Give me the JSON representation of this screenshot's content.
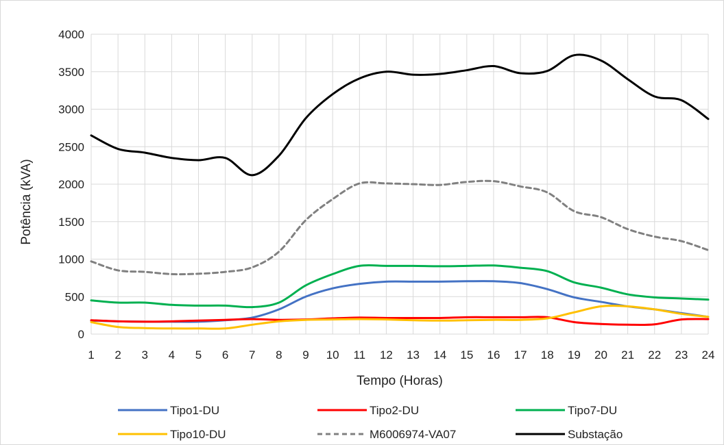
{
  "chart_data": {
    "type": "line",
    "title": "",
    "xlabel": "Tempo (Horas)",
    "ylabel": "Potência (kVA)",
    "x": [
      1,
      2,
      3,
      4,
      5,
      6,
      7,
      8,
      9,
      10,
      11,
      12,
      13,
      14,
      15,
      16,
      17,
      18,
      19,
      20,
      21,
      22,
      23,
      24
    ],
    "x_tick_labels": [
      "1",
      "2",
      "3",
      "4",
      "5",
      "6",
      "7",
      "8",
      "9",
      "10",
      "11",
      "12",
      "13",
      "14",
      "15",
      "16",
      "17",
      "18",
      "19",
      "20",
      "21",
      "22",
      "23",
      "24"
    ],
    "ylim": [
      0,
      4000
    ],
    "y_ticks": [
      0,
      500,
      1000,
      1500,
      2000,
      2500,
      3000,
      3500,
      4000
    ],
    "y_tick_labels": [
      "0",
      "500",
      "1000",
      "1500",
      "2000",
      "2500",
      "3000",
      "3500",
      "4000"
    ],
    "grid": true,
    "legend_position": "bottom",
    "series": [
      {
        "name": "Tipo1-DU",
        "color": "#4472c4",
        "dash": "solid",
        "values": [
          180,
          170,
          165,
          165,
          165,
          185,
          220,
          330,
          500,
          610,
          670,
          700,
          700,
          700,
          705,
          705,
          680,
          600,
          490,
          430,
          370,
          330,
          280,
          230
        ]
      },
      {
        "name": "Tipo2-DU",
        "color": "#ff0000",
        "dash": "solid",
        "values": [
          185,
          170,
          165,
          170,
          180,
          190,
          200,
          190,
          195,
          210,
          220,
          215,
          215,
          215,
          225,
          225,
          225,
          225,
          160,
          135,
          125,
          130,
          195,
          200
        ]
      },
      {
        "name": "Tipo7-DU",
        "color": "#00b050",
        "dash": "solid",
        "values": [
          450,
          420,
          420,
          390,
          380,
          380,
          360,
          420,
          650,
          800,
          910,
          910,
          910,
          905,
          910,
          915,
          885,
          840,
          690,
          620,
          530,
          490,
          475,
          460
        ]
      },
      {
        "name": "Tipo10-DU",
        "color": "#ffc000",
        "dash": "solid",
        "values": [
          160,
          95,
          80,
          75,
          75,
          75,
          125,
          170,
          190,
          195,
          200,
          195,
          185,
          180,
          185,
          190,
          190,
          210,
          290,
          370,
          370,
          330,
          270,
          230
        ]
      },
      {
        "name": "M6006974-VA07",
        "color": "#808080",
        "dash": "dashed",
        "values": [
          970,
          850,
          830,
          800,
          805,
          830,
          890,
          1100,
          1520,
          1800,
          2010,
          2010,
          2000,
          1990,
          2030,
          2040,
          1970,
          1890,
          1640,
          1560,
          1400,
          1300,
          1240,
          1120
        ]
      },
      {
        "name": "Substação",
        "color": "#000000",
        "dash": "solid",
        "values": [
          2650,
          2470,
          2420,
          2350,
          2320,
          2350,
          2120,
          2380,
          2880,
          3200,
          3410,
          3500,
          3460,
          3470,
          3520,
          3575,
          3480,
          3510,
          3720,
          3650,
          3400,
          3170,
          3120,
          2870
        ]
      }
    ]
  }
}
